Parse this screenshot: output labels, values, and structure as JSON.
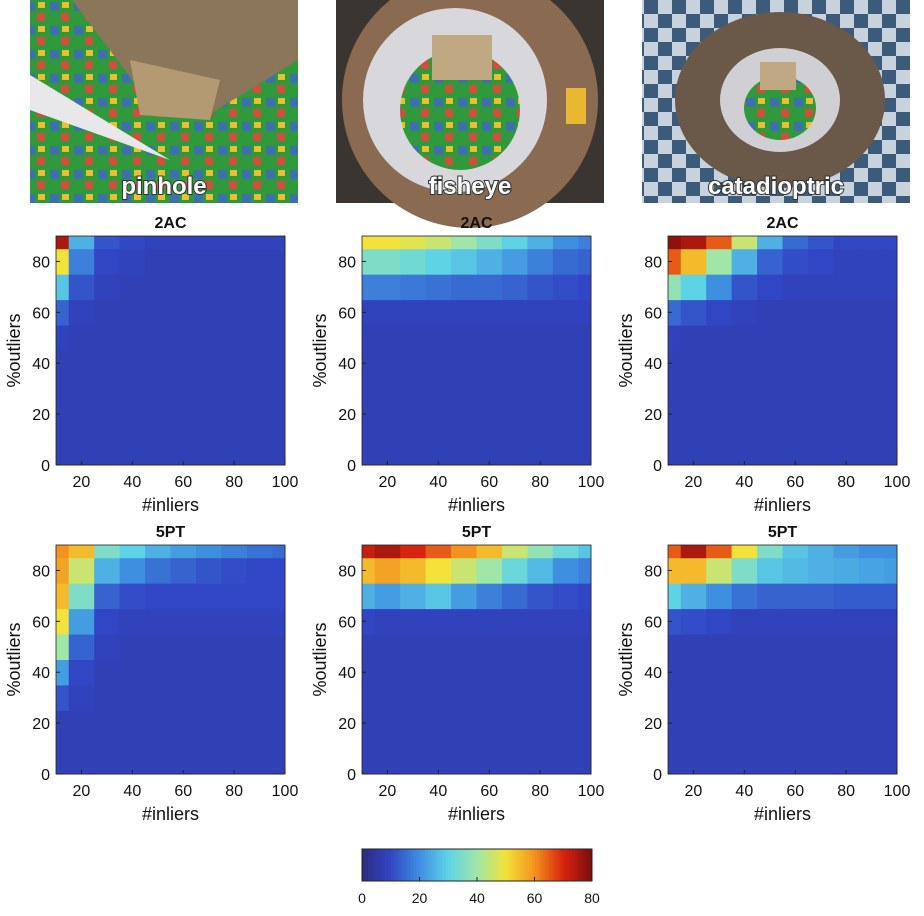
{
  "photos": [
    {
      "label": "pinhole"
    },
    {
      "label": "fisheye"
    },
    {
      "label": "catadioptric"
    }
  ],
  "chart_data": [
    {
      "type": "heatmap",
      "title": "2AC",
      "x_label": "#inliers",
      "y_label": "%outliers",
      "x": [
        10,
        20,
        30,
        40,
        50,
        60,
        70,
        80,
        90,
        100
      ],
      "y": [
        0,
        10,
        20,
        30,
        40,
        50,
        60,
        70,
        80,
        90
      ],
      "xlim": [
        10,
        100
      ],
      "ylim": [
        0,
        90
      ],
      "xticks": [
        20,
        40,
        60,
        80,
        100
      ],
      "yticks": [
        0,
        20,
        40,
        60,
        80
      ],
      "z": [
        [
          8,
          8,
          8,
          8,
          8,
          8,
          8,
          8,
          8,
          8
        ],
        [
          8,
          8,
          8,
          8,
          8,
          8,
          8,
          8,
          8,
          8
        ],
        [
          8,
          8,
          8,
          8,
          8,
          8,
          8,
          8,
          8,
          8
        ],
        [
          8,
          8,
          8,
          8,
          8,
          8,
          8,
          8,
          8,
          8
        ],
        [
          8,
          8,
          8,
          8,
          8,
          8,
          8,
          8,
          8,
          8
        ],
        [
          9,
          8,
          8,
          8,
          8,
          8,
          8,
          8,
          8,
          8
        ],
        [
          14,
          9,
          8,
          8,
          8,
          8,
          8,
          8,
          8,
          8
        ],
        [
          28,
          12,
          9,
          8,
          8,
          8,
          8,
          8,
          8,
          8
        ],
        [
          50,
          18,
          10,
          9,
          8,
          8,
          8,
          8,
          8,
          8
        ],
        [
          75,
          25,
          12,
          10,
          9,
          9,
          9,
          9,
          9,
          9
        ]
      ]
    },
    {
      "type": "heatmap",
      "title": "2AC",
      "x_label": "#inliers",
      "y_label": "%outliers",
      "x": [
        10,
        20,
        30,
        40,
        50,
        60,
        70,
        80,
        90,
        100
      ],
      "y": [
        0,
        10,
        20,
        30,
        40,
        50,
        60,
        70,
        80,
        90
      ],
      "xlim": [
        10,
        100
      ],
      "ylim": [
        0,
        90
      ],
      "xticks": [
        20,
        40,
        60,
        80,
        100
      ],
      "yticks": [
        0,
        20,
        40,
        60,
        80
      ],
      "z": [
        [
          8,
          8,
          8,
          8,
          8,
          8,
          8,
          8,
          8,
          8
        ],
        [
          8,
          8,
          8,
          8,
          8,
          8,
          8,
          8,
          8,
          8
        ],
        [
          8,
          8,
          8,
          8,
          8,
          8,
          8,
          8,
          8,
          8
        ],
        [
          8,
          8,
          8,
          8,
          8,
          8,
          8,
          8,
          8,
          8
        ],
        [
          8,
          8,
          8,
          8,
          8,
          8,
          8,
          8,
          8,
          8
        ],
        [
          8,
          8,
          8,
          8,
          8,
          8,
          8,
          8,
          8,
          8
        ],
        [
          9,
          9,
          9,
          9,
          9,
          9,
          9,
          9,
          9,
          9
        ],
        [
          18,
          18,
          17,
          16,
          15,
          15,
          14,
          12,
          11,
          10
        ],
        [
          35,
          35,
          33,
          30,
          28,
          25,
          22,
          18,
          15,
          14
        ],
        [
          50,
          50,
          48,
          45,
          40,
          35,
          30,
          25,
          20,
          18
        ]
      ]
    },
    {
      "type": "heatmap",
      "title": "2AC",
      "x_label": "#inliers",
      "y_label": "%outliers",
      "x": [
        10,
        20,
        30,
        40,
        50,
        60,
        70,
        80,
        90,
        100
      ],
      "y": [
        0,
        10,
        20,
        30,
        40,
        50,
        60,
        70,
        80,
        90
      ],
      "xlim": [
        10,
        100
      ],
      "ylim": [
        0,
        90
      ],
      "xticks": [
        20,
        40,
        60,
        80,
        100
      ],
      "yticks": [
        0,
        20,
        40,
        60,
        80
      ],
      "z": [
        [
          8,
          8,
          8,
          8,
          8,
          8,
          8,
          8,
          8,
          8
        ],
        [
          8,
          8,
          8,
          8,
          8,
          8,
          8,
          8,
          8,
          8
        ],
        [
          8,
          8,
          8,
          8,
          8,
          8,
          8,
          8,
          8,
          8
        ],
        [
          8,
          8,
          8,
          8,
          8,
          8,
          8,
          8,
          8,
          8
        ],
        [
          8,
          8,
          8,
          8,
          8,
          8,
          8,
          8,
          8,
          8
        ],
        [
          9,
          8,
          8,
          8,
          8,
          8,
          8,
          8,
          8,
          8
        ],
        [
          15,
          12,
          10,
          9,
          8,
          8,
          8,
          8,
          8,
          8
        ],
        [
          38,
          30,
          20,
          12,
          10,
          9,
          9,
          9,
          9,
          9
        ],
        [
          65,
          55,
          40,
          25,
          14,
          11,
          10,
          9,
          9,
          9
        ],
        [
          78,
          75,
          65,
          45,
          25,
          15,
          12,
          10,
          10,
          10
        ]
      ]
    },
    {
      "type": "heatmap",
      "title": "5PT",
      "x_label": "#inliers",
      "y_label": "%outliers",
      "x": [
        10,
        20,
        30,
        40,
        50,
        60,
        70,
        80,
        90,
        100
      ],
      "y": [
        0,
        10,
        20,
        30,
        40,
        50,
        60,
        70,
        80,
        90
      ],
      "xlim": [
        10,
        100
      ],
      "ylim": [
        0,
        90
      ],
      "xticks": [
        20,
        40,
        60,
        80,
        100
      ],
      "yticks": [
        0,
        20,
        40,
        60,
        80
      ],
      "z": [
        [
          8,
          8,
          8,
          8,
          8,
          8,
          8,
          8,
          8,
          8
        ],
        [
          8,
          8,
          8,
          8,
          8,
          8,
          8,
          8,
          8,
          8
        ],
        [
          8,
          8,
          8,
          8,
          8,
          8,
          8,
          8,
          8,
          8
        ],
        [
          12,
          9,
          8,
          8,
          8,
          8,
          8,
          8,
          8,
          8
        ],
        [
          22,
          10,
          8,
          8,
          8,
          8,
          8,
          8,
          8,
          8
        ],
        [
          40,
          14,
          9,
          8,
          8,
          8,
          8,
          8,
          8,
          8
        ],
        [
          50,
          22,
          10,
          9,
          9,
          9,
          9,
          9,
          9,
          9
        ],
        [
          55,
          35,
          14,
          11,
          10,
          10,
          10,
          10,
          10,
          10
        ],
        [
          58,
          45,
          25,
          20,
          16,
          14,
          12,
          11,
          10,
          10
        ],
        [
          60,
          55,
          35,
          30,
          25,
          22,
          20,
          18,
          16,
          15
        ]
      ]
    },
    {
      "type": "heatmap",
      "title": "5PT",
      "x_label": "#inliers",
      "y_label": "%outliers",
      "x": [
        10,
        20,
        30,
        40,
        50,
        60,
        70,
        80,
        90,
        100
      ],
      "y": [
        0,
        10,
        20,
        30,
        40,
        50,
        60,
        70,
        80,
        90
      ],
      "xlim": [
        10,
        100
      ],
      "ylim": [
        0,
        90
      ],
      "xticks": [
        20,
        40,
        60,
        80,
        100
      ],
      "yticks": [
        0,
        20,
        40,
        60,
        80
      ],
      "z": [
        [
          8,
          8,
          8,
          8,
          8,
          8,
          8,
          8,
          8,
          8
        ],
        [
          8,
          8,
          8,
          8,
          8,
          8,
          8,
          8,
          8,
          8
        ],
        [
          8,
          8,
          8,
          8,
          8,
          8,
          8,
          8,
          8,
          8
        ],
        [
          8,
          8,
          8,
          8,
          8,
          8,
          8,
          8,
          8,
          8
        ],
        [
          8,
          8,
          8,
          8,
          8,
          8,
          8,
          8,
          8,
          8
        ],
        [
          8,
          8,
          8,
          8,
          8,
          8,
          8,
          8,
          8,
          8
        ],
        [
          10,
          9,
          9,
          9,
          9,
          9,
          9,
          9,
          9,
          9
        ],
        [
          25,
          22,
          25,
          28,
          22,
          18,
          15,
          12,
          11,
          10
        ],
        [
          55,
          58,
          55,
          50,
          45,
          40,
          32,
          26,
          20,
          18
        ],
        [
          72,
          75,
          70,
          65,
          60,
          55,
          45,
          38,
          32,
          28
        ]
      ]
    },
    {
      "type": "heatmap",
      "title": "5PT",
      "x_label": "#inliers",
      "y_label": "%outliers",
      "x": [
        10,
        20,
        30,
        40,
        50,
        60,
        70,
        80,
        90,
        100
      ],
      "y": [
        0,
        10,
        20,
        30,
        40,
        50,
        60,
        70,
        80,
        90
      ],
      "xlim": [
        10,
        100
      ],
      "ylim": [
        0,
        90
      ],
      "xticks": [
        20,
        40,
        60,
        80,
        100
      ],
      "yticks": [
        0,
        20,
        40,
        60,
        80
      ],
      "z": [
        [
          8,
          8,
          8,
          8,
          8,
          8,
          8,
          8,
          8,
          8
        ],
        [
          8,
          8,
          8,
          8,
          8,
          8,
          8,
          8,
          8,
          8
        ],
        [
          8,
          8,
          8,
          8,
          8,
          8,
          8,
          8,
          8,
          8
        ],
        [
          8,
          8,
          8,
          8,
          8,
          8,
          8,
          8,
          8,
          8
        ],
        [
          8,
          8,
          8,
          8,
          8,
          8,
          8,
          8,
          8,
          8
        ],
        [
          8,
          8,
          8,
          8,
          8,
          8,
          8,
          8,
          8,
          8
        ],
        [
          12,
          11,
          10,
          9,
          9,
          9,
          9,
          9,
          9,
          9
        ],
        [
          30,
          25,
          20,
          16,
          14,
          14,
          14,
          13,
          13,
          13
        ],
        [
          55,
          55,
          45,
          35,
          28,
          26,
          25,
          24,
          23,
          22
        ],
        [
          65,
          75,
          65,
          50,
          35,
          28,
          25,
          22,
          20,
          20
        ]
      ]
    }
  ],
  "colorbar": {
    "lim": [
      0,
      80
    ],
    "ticks": [
      0,
      20,
      40,
      60,
      80
    ],
    "colormap": [
      "#2b2c80",
      "#3146c4",
      "#3f8fe0",
      "#5ed3e6",
      "#9fe6a8",
      "#f2e23a",
      "#f3931e",
      "#d8240f",
      "#7a0d0d"
    ]
  }
}
